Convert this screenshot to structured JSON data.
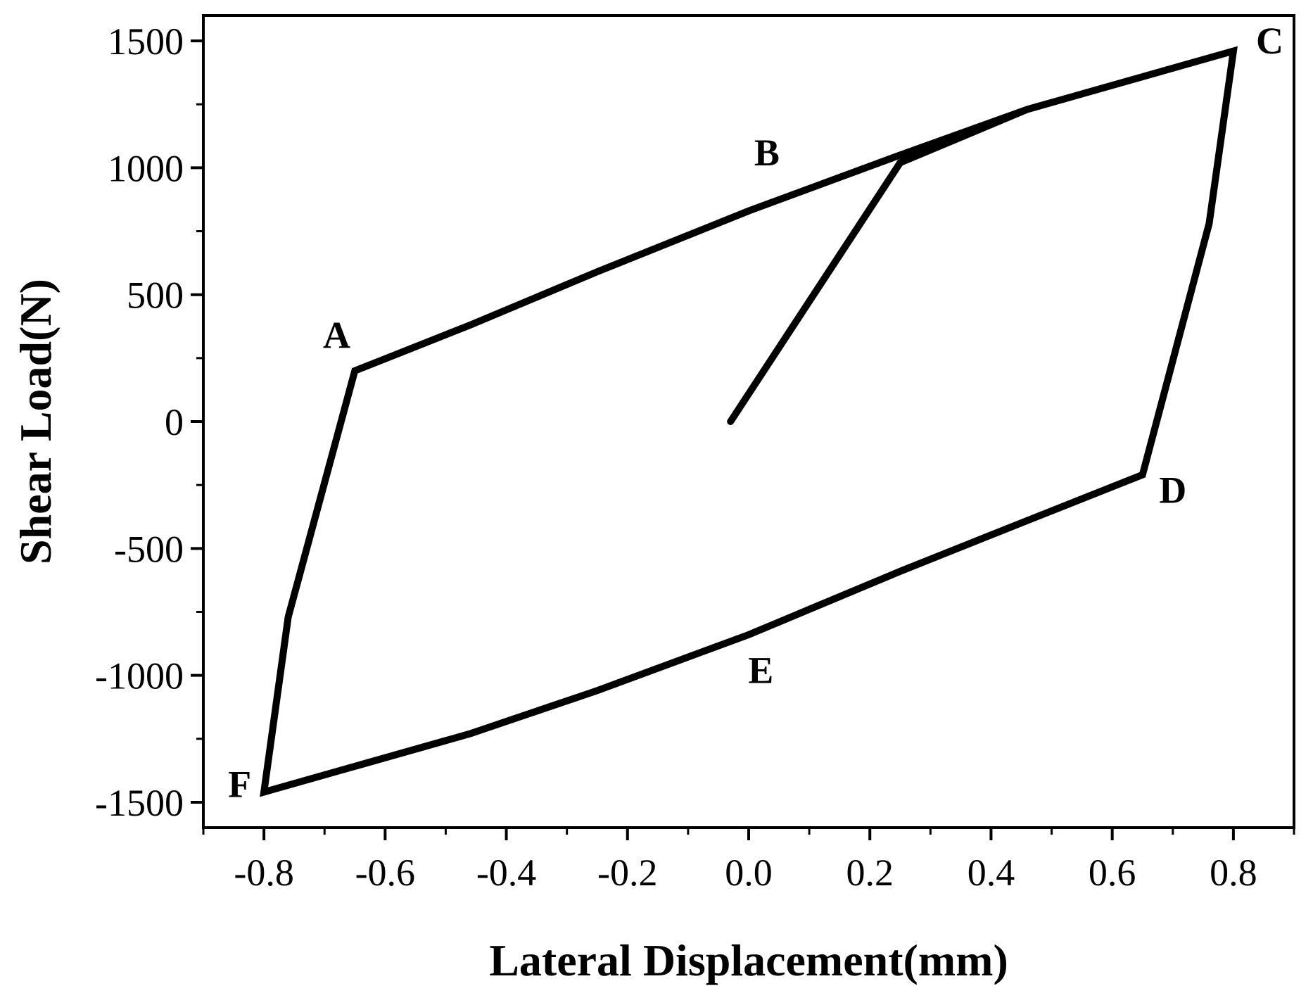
{
  "chart_data": {
    "type": "line",
    "xlabel": "Lateral  Displacement(mm)",
    "ylabel": "Shear  Load(N)",
    "xlim": [
      -0.9,
      0.9
    ],
    "ylim": [
      -1600,
      1600
    ],
    "xticks": [
      {
        "value": -0.8,
        "label": "-0.8"
      },
      {
        "value": -0.6,
        "label": "-0.6"
      },
      {
        "value": -0.4,
        "label": "-0.4"
      },
      {
        "value": -0.2,
        "label": "-0.2"
      },
      {
        "value": 0.0,
        "label": "0.0"
      },
      {
        "value": 0.2,
        "label": "0.2"
      },
      {
        "value": 0.4,
        "label": "0.4"
      },
      {
        "value": 0.6,
        "label": "0.6"
      },
      {
        "value": 0.8,
        "label": "0.8"
      }
    ],
    "yticks": [
      {
        "value": 1500,
        "label": "1500"
      },
      {
        "value": 1000,
        "label": "1000"
      },
      {
        "value": 500,
        "label": "500"
      },
      {
        "value": 0,
        "label": "0"
      },
      {
        "value": -500,
        "label": "-500"
      },
      {
        "value": -1000,
        "label": "-1000"
      },
      {
        "value": -1500,
        "label": "-1500"
      }
    ],
    "grid": false,
    "series": [
      {
        "color": "#000000",
        "points": [
          {
            "x": -0.03,
            "y": 0
          },
          {
            "x": 0.25,
            "y": 1020
          },
          {
            "x": 0.46,
            "y": 1230
          },
          {
            "x": 0.8,
            "y": 1460
          },
          {
            "x": 0.76,
            "y": 780
          },
          {
            "x": 0.65,
            "y": -210
          },
          {
            "x": 0.46,
            "y": -390
          },
          {
            "x": 0.25,
            "y": -590
          },
          {
            "x": 0.0,
            "y": -840
          },
          {
            "x": -0.25,
            "y": -1060
          },
          {
            "x": -0.46,
            "y": -1230
          },
          {
            "x": -0.8,
            "y": -1460
          },
          {
            "x": -0.76,
            "y": -770
          },
          {
            "x": -0.65,
            "y": 200
          },
          {
            "x": -0.46,
            "y": 380
          },
          {
            "x": -0.25,
            "y": 590
          },
          {
            "x": 0.0,
            "y": 830
          },
          {
            "x": 0.25,
            "y": 1050
          },
          {
            "x": 0.46,
            "y": 1230
          },
          {
            "x": 0.8,
            "y": 1460
          }
        ]
      }
    ],
    "annotations": [
      {
        "label": "A",
        "x": -0.68,
        "y": 290
      },
      {
        "label": "B",
        "x": 0.03,
        "y": 1010
      },
      {
        "label": "C",
        "x": 0.86,
        "y": 1450
      },
      {
        "label": "D",
        "x": 0.7,
        "y": -320
      },
      {
        "label": "E",
        "x": 0.02,
        "y": -1030
      },
      {
        "label": "F",
        "x": -0.84,
        "y": -1480
      }
    ]
  }
}
